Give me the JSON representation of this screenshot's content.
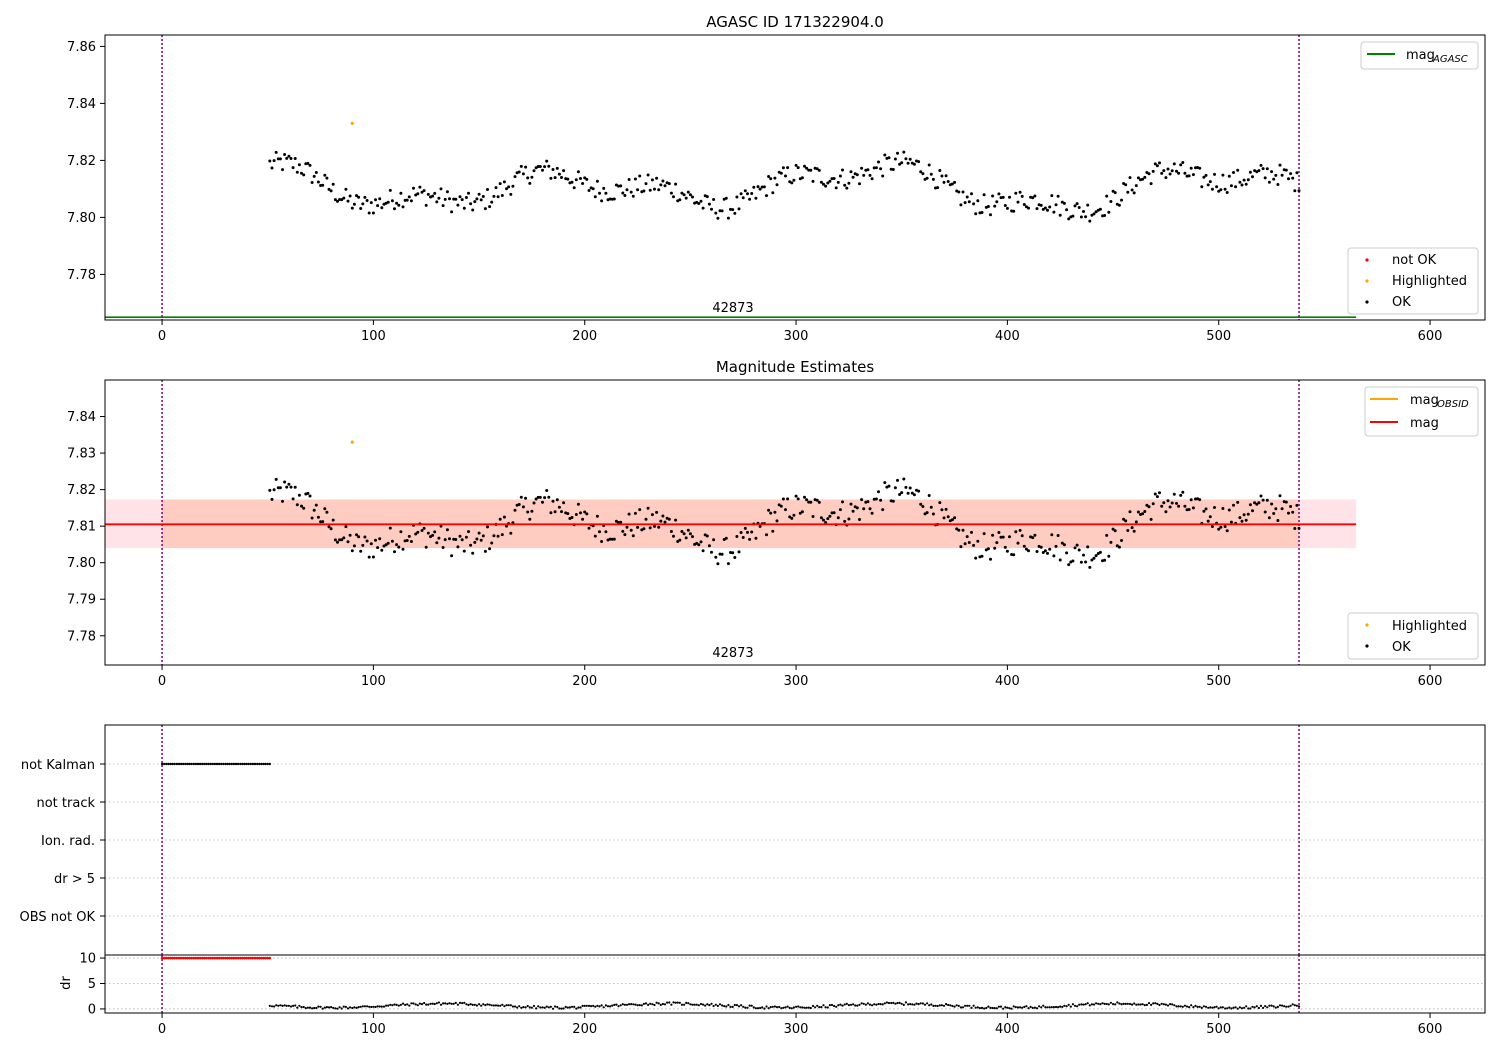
{
  "colors": {
    "ok": "#000000",
    "highlighted": "#ffa500",
    "not_ok": "#ff0000",
    "agasc_line": "#008000",
    "obsid_line": "#ffa500",
    "mag_line": "#ff0000",
    "band_outer": "#ffc0cb",
    "band_inner": "#ffa07a",
    "vline": "#800080",
    "grid": "#b0b0b0"
  },
  "chart_data": [
    {
      "id": "agasc_panel",
      "type": "scatter",
      "title": "AGASC ID 171322904.0",
      "xlim": [
        -27,
        626
      ],
      "ylim": [
        7.764,
        7.864
      ],
      "xticks": [
        0,
        100,
        200,
        300,
        400,
        500,
        600
      ],
      "yticks": [
        7.78,
        7.8,
        7.82,
        7.84,
        7.86
      ],
      "ytick_labels": [
        "7.78",
        "7.80",
        "7.82",
        "7.84",
        "7.86"
      ],
      "obsid_label": {
        "text": "42873",
        "x": 269
      },
      "vlines": [
        0,
        538
      ],
      "hlines": [
        {
          "name": "mag_AGASC",
          "y": 7.765,
          "x0": -27,
          "x1": 565
        }
      ],
      "legend_lines": [
        {
          "label": "mag",
          "sub": "AGASC"
        }
      ],
      "legend_markers": [
        "not OK",
        "Highlighted",
        "OK"
      ],
      "series": {
        "start": 51,
        "end": 538,
        "step": 1,
        "base": 7.8105,
        "highlighted": [
          {
            "x": 90,
            "y": 7.833
          }
        ]
      }
    },
    {
      "id": "magnitude_panel",
      "type": "scatter",
      "title": "Magnitude Estimates",
      "xlim": [
        -27,
        626
      ],
      "ylim": [
        7.772,
        7.85
      ],
      "xticks": [
        0,
        100,
        200,
        300,
        400,
        500,
        600
      ],
      "yticks": [
        7.78,
        7.79,
        7.8,
        7.81,
        7.82,
        7.83,
        7.84
      ],
      "ytick_labels": [
        "7.78",
        "7.79",
        "7.80",
        "7.81",
        "7.82",
        "7.83",
        "7.84"
      ],
      "obsid_label": {
        "text": "42873",
        "x": 269
      },
      "vlines": [
        0,
        538
      ],
      "mag": 7.8105,
      "band_outer": [
        7.804,
        7.8173
      ],
      "band_inner": [
        7.804,
        7.8173
      ],
      "legend_lines": [
        {
          "label": "mag",
          "sub": "OBSID"
        },
        {
          "label": "mag",
          "sub": ""
        }
      ],
      "legend_markers": [
        "Highlighted",
        "OK"
      ],
      "series": {
        "start": 51,
        "end": 538,
        "step": 1,
        "base": 7.8105,
        "highlighted": [
          {
            "x": 90,
            "y": 7.833
          }
        ]
      }
    },
    {
      "id": "flags_panel",
      "type": "scatter",
      "xlim": [
        -27,
        626
      ],
      "categories": [
        "not Kalman",
        "not track",
        "Ion. rad.",
        "dr > 5",
        "OBS not OK"
      ],
      "not_kalman_range": [
        0,
        51
      ],
      "vlines": [
        0,
        538
      ]
    },
    {
      "id": "dr_panel",
      "type": "scatter",
      "ylabel": "dr",
      "xlim": [
        -27,
        626
      ],
      "ylim": [
        -0.8,
        10.6
      ],
      "yticks": [
        0,
        5,
        10
      ],
      "ytick_labels": [
        "0",
        "5",
        "10"
      ],
      "xticks": [
        0,
        100,
        200,
        300,
        400,
        500,
        600
      ],
      "clipped_range": [
        0,
        51
      ],
      "clipped_value": 10,
      "ok_range": [
        51,
        538
      ],
      "vlines": [
        0,
        538
      ]
    }
  ],
  "legend_text": {
    "mag_agasc_main": "mag",
    "mag_agasc_sub": "AGASC",
    "mag_obsid_main": "mag",
    "mag_obsid_sub": "OBSID",
    "mag_label": "mag",
    "not_ok": "not OK",
    "highlighted": "Highlighted",
    "ok": "OK"
  }
}
